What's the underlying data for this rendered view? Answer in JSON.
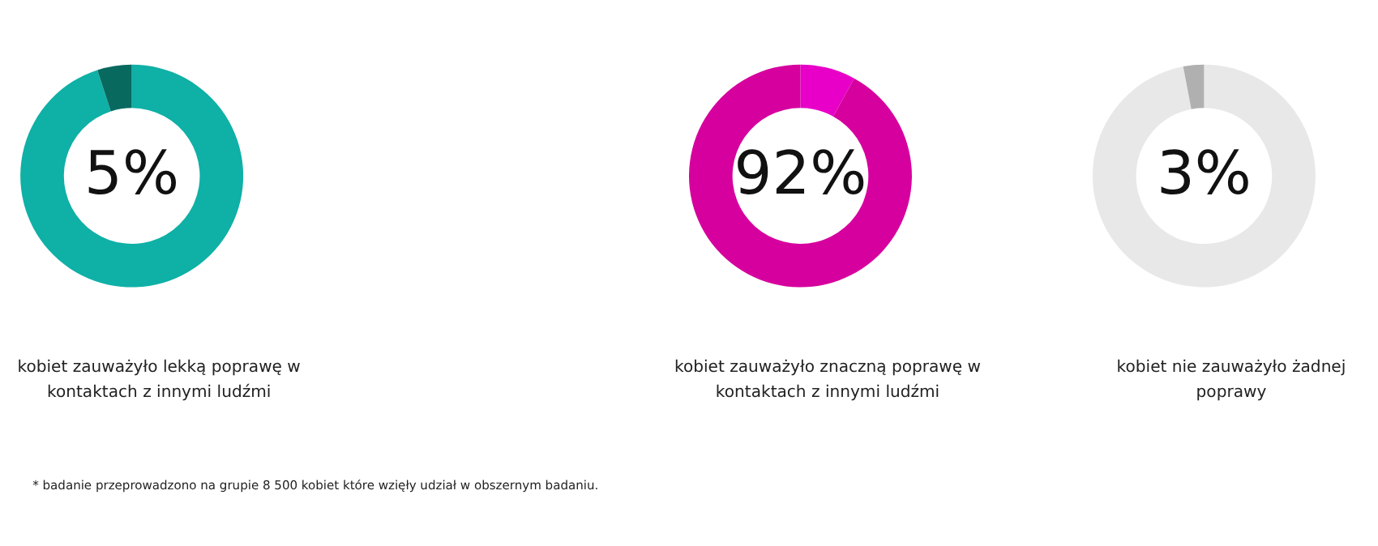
{
  "chart_data": [
    {
      "type": "donut",
      "categories": [
        null,
        null
      ],
      "values": [
        95,
        5
      ],
      "colors": [
        "#0fb0a6",
        "#08695f"
      ],
      "value_labels": [
        null,
        "5%"
      ],
      "annotations": [
        "kobiet zauważyło lekką poprawę w kontaktach z innymi ludźmi",
        "* badanie przeprowadzono na grupie 8 500 kobiet  które wzięły udział w obszernym badaniu."
      ]
    },
    {
      "type": "donut",
      "categories": [
        null,
        null
      ],
      "values": [
        8,
        92
      ],
      "colors": [
        "#e800c8",
        "#d6009e"
      ],
      "value_labels": [
        null,
        "92%"
      ],
      "annotations": [
        "kobiet zauważyło znaczną poprawę w kontaktach z innymi ludźmi"
      ]
    },
    {
      "type": "donut",
      "categories": [
        null,
        null
      ],
      "values": [
        97,
        3
      ],
      "colors": [
        "#e8e8e8",
        "#b0b0b0"
      ],
      "value_labels": [
        null,
        "3%"
      ],
      "annotations": [
        "kobiet nie zauważyło żadnej poprawy"
      ]
    }
  ]
}
